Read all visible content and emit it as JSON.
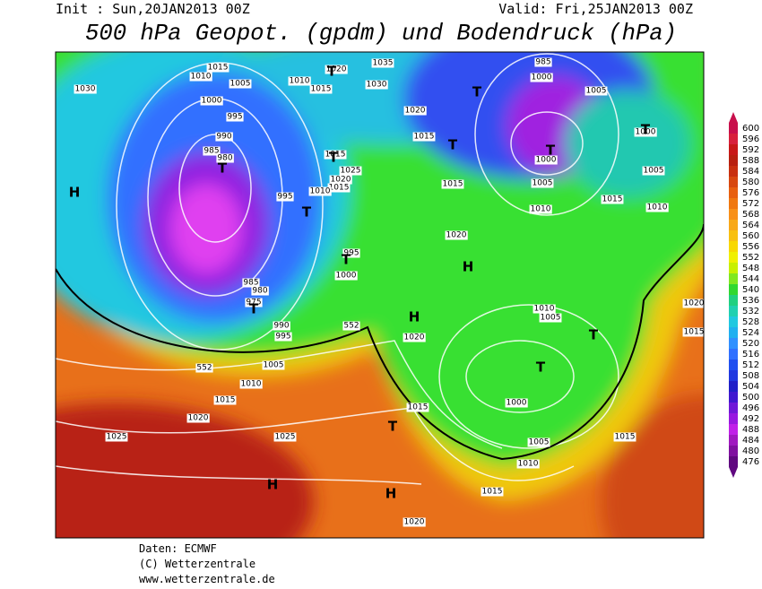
{
  "header": {
    "init": "Init : Sun,20JAN2013 00Z",
    "valid": "Valid: Fri,25JAN2013 00Z",
    "title": "500 hPa Geopot. (gpdm) und Bodendruck (hPa)"
  },
  "map": {
    "isobar_labels": [
      1015,
      1010,
      1005,
      1000,
      995,
      990,
      985,
      980,
      1030,
      1010,
      1015,
      1020,
      1035,
      1030,
      1020,
      1015,
      1015,
      1025,
      1020,
      1015,
      1010,
      995,
      995,
      1000,
      985,
      980,
      975,
      990,
      995,
      1005,
      1010,
      1015,
      1020,
      1025,
      1025,
      1015,
      1020,
      1020,
      1015,
      985,
      1000,
      1005,
      1000,
      1005,
      1010,
      1015,
      1005,
      1010,
      1000,
      1010,
      1005,
      1000,
      1005,
      1010,
      1015,
      1020,
      1015,
      1020,
      1015
    ],
    "geopotential_labels": [
      552,
      552
    ],
    "centers": [
      "H",
      "H",
      "H",
      "H",
      "H",
      "T",
      "T",
      "T",
      "T",
      "T",
      "T",
      "T",
      "T",
      "T",
      "T",
      "T",
      "T",
      "T"
    ]
  },
  "colorbar": {
    "labels": [
      600,
      596,
      592,
      588,
      584,
      580,
      576,
      572,
      568,
      564,
      560,
      556,
      552,
      548,
      544,
      540,
      536,
      532,
      528,
      524,
      520,
      516,
      512,
      508,
      504,
      500,
      496,
      492,
      488,
      484,
      480,
      476
    ],
    "colors": [
      "#c8104c",
      "#d8203c",
      "#c81818",
      "#b82010",
      "#c83010",
      "#d84810",
      "#e86010",
      "#f07810",
      "#f89018",
      "#f8a818",
      "#f8c010",
      "#f8d800",
      "#f0f000",
      "#c8f000",
      "#80e820",
      "#30d830",
      "#20d080",
      "#20d0b0",
      "#20c8e0",
      "#20b0f0",
      "#3090ff",
      "#3070ff",
      "#2050f0",
      "#2038e0",
      "#2020c8",
      "#4018d0",
      "#7018d8",
      "#9818e0",
      "#c020e8",
      "#a018c0",
      "#8010a0",
      "#600880"
    ]
  },
  "footer": [
    "Daten: ECMWF",
    "(C) Wetterzentrale",
    "www.wetterzentrale.de"
  ]
}
